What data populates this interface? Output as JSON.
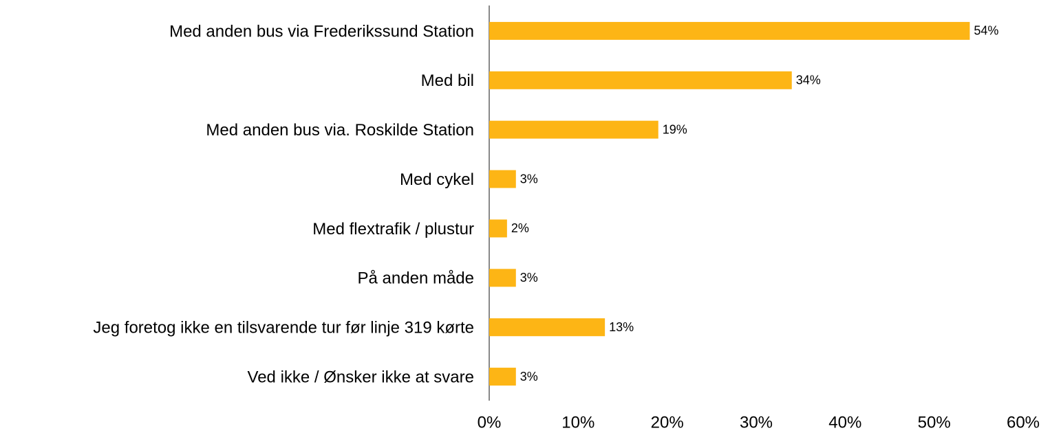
{
  "chart_data": {
    "type": "barh",
    "categories": [
      "Med anden bus via Frederikssund Station",
      "Med bil",
      "Med anden bus via. Roskilde Station",
      "Med cykel",
      "Med flextrafik / plustur",
      "På anden måde",
      "Jeg foretog ikke en tilsvarende tur før linje 319 kørte",
      "Ved ikke / Ønsker ikke at svare"
    ],
    "values": [
      54,
      34,
      19,
      3,
      2,
      3,
      13,
      3
    ],
    "value_labels": [
      "54%",
      "34%",
      "19%",
      "3%",
      "2%",
      "3%",
      "13%",
      "3%"
    ],
    "color": "#FDB515",
    "xlim": [
      0,
      60
    ],
    "xticks": [
      {
        "value": 0,
        "label": "0%"
      },
      {
        "value": 10,
        "label": "10%"
      },
      {
        "value": 20,
        "label": "20%"
      },
      {
        "value": 30,
        "label": "30%"
      },
      {
        "value": 40,
        "label": "40%"
      },
      {
        "value": 50,
        "label": "50%"
      },
      {
        "value": 60,
        "label": "60%"
      }
    ],
    "grid": false
  }
}
